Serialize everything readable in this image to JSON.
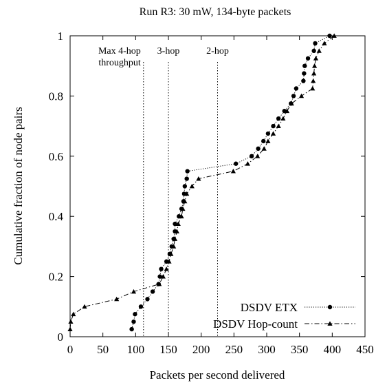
{
  "chart_data": {
    "type": "line",
    "title": "Run R3: 30 mW, 134-byte packets",
    "xlabel": "Packets per second delivered",
    "ylabel": "Cumulative fraction of node pairs",
    "xlim": [
      0,
      450
    ],
    "ylim": [
      0,
      1
    ],
    "xticks": [
      0,
      50,
      100,
      150,
      200,
      250,
      300,
      350,
      400,
      450
    ],
    "yticks": [
      0,
      0.2,
      0.4,
      0.6,
      0.8,
      1
    ],
    "ytick_labels": [
      "0",
      "0.2",
      "0.4",
      "0.6",
      "0.8",
      "1"
    ],
    "legend_position": "bottom-right",
    "grid": false,
    "annotations": [
      {
        "text": "Max 4-hop",
        "text2": "throughput",
        "x": 112
      },
      {
        "text": "3-hop",
        "x": 150
      },
      {
        "text": "2-hop",
        "x": 225
      }
    ],
    "series": [
      {
        "name": "DSDV ETX",
        "marker": "circle",
        "line": "dotted",
        "color": "#000000",
        "points": [
          [
            94,
            0.025
          ],
          [
            97,
            0.05
          ],
          [
            99,
            0.075
          ],
          [
            108,
            0.1
          ],
          [
            118,
            0.125
          ],
          [
            126,
            0.15
          ],
          [
            135,
            0.175
          ],
          [
            137,
            0.2
          ],
          [
            139,
            0.225
          ],
          [
            147,
            0.25
          ],
          [
            152,
            0.275
          ],
          [
            155,
            0.3
          ],
          [
            158,
            0.325
          ],
          [
            160,
            0.35
          ],
          [
            160,
            0.375
          ],
          [
            166,
            0.4
          ],
          [
            170,
            0.425
          ],
          [
            173,
            0.45
          ],
          [
            174,
            0.475
          ],
          [
            175,
            0.5
          ],
          [
            178,
            0.525
          ],
          [
            179,
            0.55
          ],
          [
            253,
            0.575
          ],
          [
            277,
            0.6
          ],
          [
            287,
            0.625
          ],
          [
            295,
            0.65
          ],
          [
            302,
            0.675
          ],
          [
            310,
            0.7
          ],
          [
            318,
            0.725
          ],
          [
            327,
            0.75
          ],
          [
            337,
            0.775
          ],
          [
            341,
            0.8
          ],
          [
            345,
            0.825
          ],
          [
            356,
            0.85
          ],
          [
            357,
            0.875
          ],
          [
            358,
            0.9
          ],
          [
            363,
            0.925
          ],
          [
            372,
            0.95
          ],
          [
            374,
            0.975
          ],
          [
            396,
            1.0
          ]
        ]
      },
      {
        "name": "DSDV Hop-count",
        "marker": "triangle",
        "line": "dashdot",
        "color": "#000000",
        "points": [
          [
            0,
            0.025
          ],
          [
            1,
            0.05
          ],
          [
            5,
            0.075
          ],
          [
            22,
            0.1
          ],
          [
            71,
            0.125
          ],
          [
            97,
            0.15
          ],
          [
            136,
            0.175
          ],
          [
            142,
            0.2
          ],
          [
            147,
            0.225
          ],
          [
            151,
            0.25
          ],
          [
            154,
            0.275
          ],
          [
            158,
            0.3
          ],
          [
            160,
            0.325
          ],
          [
            163,
            0.35
          ],
          [
            165,
            0.375
          ],
          [
            170,
            0.4
          ],
          [
            172,
            0.425
          ],
          [
            175,
            0.45
          ],
          [
            178,
            0.475
          ],
          [
            186,
            0.5
          ],
          [
            196,
            0.525
          ],
          [
            249,
            0.55
          ],
          [
            271,
            0.575
          ],
          [
            286,
            0.6
          ],
          [
            296,
            0.625
          ],
          [
            302,
            0.65
          ],
          [
            310,
            0.675
          ],
          [
            318,
            0.7
          ],
          [
            325,
            0.725
          ],
          [
            331,
            0.75
          ],
          [
            338,
            0.775
          ],
          [
            353,
            0.8
          ],
          [
            370,
            0.825
          ],
          [
            371,
            0.85
          ],
          [
            372,
            0.875
          ],
          [
            373,
            0.9
          ],
          [
            375,
            0.925
          ],
          [
            380,
            0.95
          ],
          [
            388,
            0.975
          ],
          [
            403,
            1.0
          ]
        ]
      }
    ]
  }
}
